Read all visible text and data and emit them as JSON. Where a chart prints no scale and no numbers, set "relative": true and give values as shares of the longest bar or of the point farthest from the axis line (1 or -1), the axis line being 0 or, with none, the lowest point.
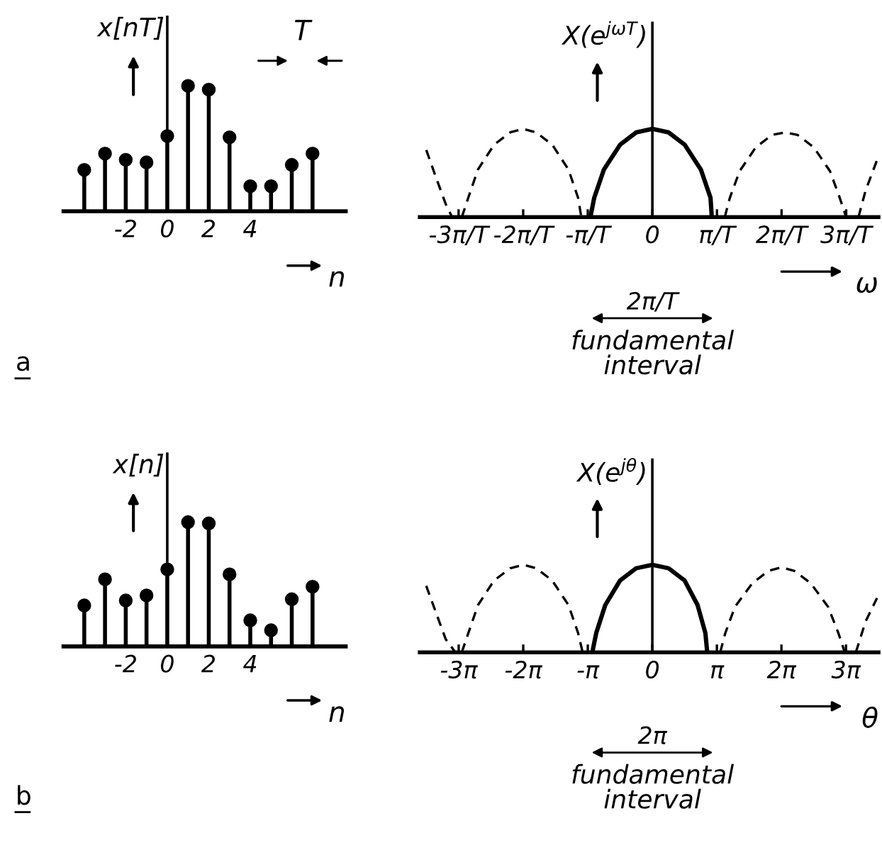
{
  "chart_data": [
    {
      "type": "lollipop",
      "relative": true,
      "x": [
        -4,
        -3,
        -2,
        -1,
        0,
        1,
        2,
        3,
        4,
        5,
        6,
        7
      ],
      "values": [
        0.33,
        0.46,
        0.41,
        0.39,
        0.6,
        1.0,
        0.97,
        0.59,
        0.2,
        0.2,
        0.37,
        0.46
      ],
      "color": "#000000",
      "marker": "circle",
      "xlim": [
        -5,
        8.6
      ],
      "xticks": [
        -2,
        0,
        2,
        4
      ],
      "xlabel": "n",
      "ylabel": "x[nT]",
      "tick_labels": "x",
      "annotations": [
        "T",
        "a"
      ]
    },
    {
      "type": "line",
      "relative": true,
      "xlim": [
        -3.6,
        3.5
      ],
      "xticks": [
        {
          "value": -3,
          "label": "-3π/T"
        },
        {
          "value": -2,
          "label": "-2π/T"
        },
        {
          "value": -1,
          "label": "-π/T"
        },
        0,
        {
          "value": 1,
          "label": "π/T"
        },
        {
          "value": 2,
          "label": "2π/T"
        },
        {
          "value": 3,
          "label": "3π/T"
        }
      ],
      "xlabel": "ω",
      "ylabel": "X(e$^{jωT}$)",
      "tick_labels": "x",
      "annotations": [
        "2π/T",
        "fundamental\ninterval"
      ],
      "series": [
        {
          "color": "#000000",
          "line_style": "solid",
          "x": [
            -0.96,
            -0.9,
            -0.75,
            -0.5,
            -0.25,
            0,
            0.25,
            0.5,
            0.75,
            0.9,
            0.92
          ],
          "values": [
            0,
            0.22,
            0.54,
            0.82,
            0.96,
            1.0,
            0.96,
            0.82,
            0.54,
            0.22,
            0
          ]
        },
        {
          "color": "#000000",
          "line_style": "dashed",
          "x": [
            -3.5,
            -3.35,
            -3.2,
            -3.1
          ],
          "values": [
            0.76,
            0.45,
            0.15,
            0
          ]
        },
        {
          "color": "#000000",
          "line_style": "dashed",
          "x": [
            -2.95,
            -2.85,
            -2.7,
            -2.45,
            -2.2,
            -2,
            -1.8,
            -1.55,
            -1.3,
            -1.15,
            -1.1
          ],
          "values": [
            0,
            0.22,
            0.54,
            0.82,
            0.96,
            1.0,
            0.96,
            0.82,
            0.54,
            0.22,
            0
          ]
        },
        {
          "color": "#000000",
          "line_style": "dashed",
          "x": [
            1.12,
            1.2,
            1.35,
            1.6,
            1.85,
            2.05,
            2.25,
            2.5,
            2.75,
            2.9,
            3.0
          ],
          "values": [
            0,
            0.22,
            0.52,
            0.79,
            0.93,
            0.96,
            0.93,
            0.79,
            0.52,
            0.22,
            0
          ]
        },
        {
          "color": "#000000",
          "line_style": "dashed",
          "x": [
            3.19,
            3.3,
            3.48
          ],
          "values": [
            0,
            0.3,
            0.65
          ]
        }
      ]
    },
    {
      "type": "lollipop",
      "relative": true,
      "x": [
        -4,
        -3,
        -2,
        -1,
        0,
        1,
        2,
        3,
        4,
        5,
        6,
        7
      ],
      "values": [
        0.33,
        0.54,
        0.37,
        0.41,
        0.62,
        1.0,
        0.99,
        0.58,
        0.21,
        0.13,
        0.38,
        0.48
      ],
      "color": "#000000",
      "marker": "circle",
      "xlim": [
        -5,
        8.6
      ],
      "xticks": [
        -2,
        0,
        2,
        4
      ],
      "xlabel": "n",
      "ylabel": "x[n]",
      "tick_labels": "x",
      "annotations": [
        "b"
      ]
    },
    {
      "type": "line",
      "relative": true,
      "xlim": [
        -11.31,
        11.0
      ],
      "xticks": [
        {
          "value": -9.42,
          "label": "-3π"
        },
        {
          "value": -6.28,
          "label": "-2π"
        },
        {
          "value": -3.14,
          "label": "-π"
        },
        0,
        {
          "value": 3.14,
          "label": "π"
        },
        {
          "value": 6.28,
          "label": "2π"
        },
        {
          "value": 9.42,
          "label": "3π"
        }
      ],
      "xlabel": "θ",
      "ylabel": "X(e$^{jθ}$)",
      "tick_labels": "x",
      "annotations": [
        "2π",
        "fundamental\ninterval"
      ],
      "series": [
        {
          "color": "#000000",
          "line_style": "solid",
          "x": [
            -2.92,
            -2.73,
            -2.29,
            -1.57,
            -0.79,
            0,
            0.79,
            1.57,
            2.2,
            2.58,
            2.67
          ],
          "values": [
            0,
            0.22,
            0.54,
            0.82,
            0.96,
            1.0,
            0.96,
            0.82,
            0.54,
            0.22,
            0
          ]
        },
        {
          "color": "#000000",
          "line_style": "dashed",
          "x": [
            -11.0,
            -10.52,
            -10.05,
            -9.58
          ],
          "values": [
            0.76,
            0.45,
            0.15,
            0
          ]
        },
        {
          "color": "#000000",
          "line_style": "dashed",
          "x": [
            -9.27,
            -8.95,
            -8.48,
            -7.7,
            -6.91,
            -6.28,
            -5.65,
            -4.87,
            -4.08,
            -3.61,
            -3.39
          ],
          "values": [
            0,
            0.22,
            0.54,
            0.82,
            0.96,
            1.0,
            0.96,
            0.82,
            0.54,
            0.22,
            0
          ]
        },
        {
          "color": "#000000",
          "line_style": "dashed",
          "x": [
            3.3,
            3.55,
            4.02,
            4.87,
            5.65,
            6.28,
            6.91,
            7.7,
            8.55,
            9.05,
            9.36
          ],
          "values": [
            0,
            0.22,
            0.52,
            0.79,
            0.93,
            0.97,
            0.93,
            0.79,
            0.52,
            0.22,
            0
          ]
        },
        {
          "color": "#000000",
          "line_style": "dashed",
          "x": [
            9.9,
            10.37,
            10.93
          ],
          "values": [
            0,
            0.35,
            0.62
          ]
        }
      ]
    }
  ]
}
